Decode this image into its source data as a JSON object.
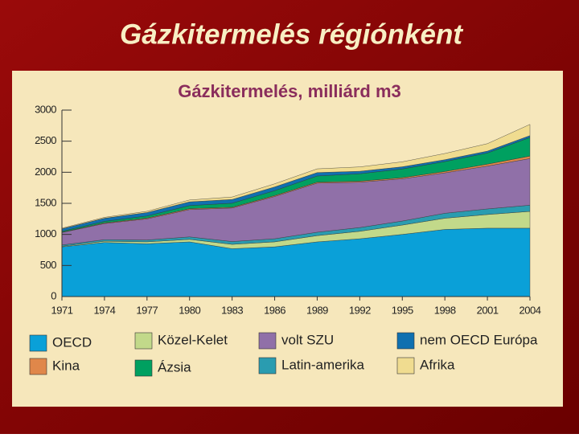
{
  "slide_title": "Gázkitermelés régiónként",
  "chart_data": {
    "type": "stacked-area",
    "title": "Gázkitermelés, milliárd m3",
    "x": [
      1971,
      1974,
      1977,
      1980,
      1983,
      1986,
      1989,
      1992,
      1995,
      1998,
      2001,
      2004
    ],
    "xlim": [
      1971,
      2004
    ],
    "xticks": [
      1971,
      1974,
      1977,
      1980,
      1983,
      1986,
      1989,
      1992,
      1995,
      1998,
      2001,
      2004
    ],
    "ylim": [
      0,
      3000
    ],
    "yticks": [
      0,
      500,
      1000,
      1500,
      2000,
      2500,
      3000
    ],
    "series": [
      {
        "name": "OECD",
        "color": "#0aa0d8",
        "values": [
          800,
          870,
          850,
          880,
          770,
          800,
          880,
          930,
          1000,
          1080,
          1100,
          1100
        ]
      },
      {
        "name": "Közel-Kelet",
        "color": "#c2d98a",
        "values": [
          10,
          20,
          30,
          40,
          70,
          80,
          100,
          120,
          150,
          180,
          220,
          270
        ]
      },
      {
        "name": "Latin-amerika",
        "color": "#2a9cb0",
        "values": [
          20,
          25,
          30,
          40,
          45,
          50,
          55,
          60,
          65,
          80,
          90,
          100
        ]
      },
      {
        "name": "volt SZU",
        "color": "#9070a8",
        "values": [
          200,
          260,
          340,
          440,
          540,
          680,
          790,
          730,
          680,
          650,
          690,
          750
        ]
      },
      {
        "name": "Kina",
        "color": "#e0874a",
        "values": [
          5,
          10,
          12,
          14,
          12,
          14,
          15,
          16,
          18,
          22,
          30,
          40
        ]
      },
      {
        "name": "Ázsia",
        "color": "#00a060",
        "values": [
          15,
          25,
          35,
          50,
          65,
          80,
          100,
          120,
          140,
          160,
          180,
          300
        ]
      },
      {
        "name": "nem OECD Európa",
        "color": "#1070b0",
        "values": [
          40,
          50,
          55,
          60,
          60,
          60,
          55,
          40,
          35,
          30,
          30,
          30
        ]
      },
      {
        "name": "Afrika",
        "color": "#f0dc90",
        "values": [
          10,
          15,
          20,
          30,
          40,
          50,
          60,
          70,
          80,
          100,
          120,
          180
        ]
      }
    ]
  }
}
